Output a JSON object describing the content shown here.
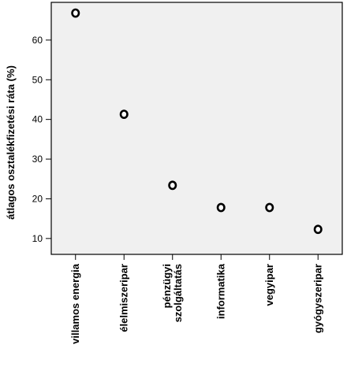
{
  "chart_data": {
    "type": "scatter",
    "title": "",
    "xlabel": "",
    "ylabel": "átlagos osztalékfizetési ráta (%)",
    "ylim": [
      6,
      69.5
    ],
    "yticks": [
      10,
      20,
      30,
      40,
      50,
      60
    ],
    "grid": false,
    "background": "#f0f0f0",
    "categories": [
      [
        "villamos energia"
      ],
      [
        "élelmiszeripar"
      ],
      [
        "pénzügyi",
        "szolgáltatás"
      ],
      [
        "informatika"
      ],
      [
        "vegyipar"
      ],
      [
        "gyógyszeripar"
      ]
    ],
    "values": [
      66.8,
      41.3,
      23.4,
      17.8,
      17.8,
      12.3
    ]
  }
}
